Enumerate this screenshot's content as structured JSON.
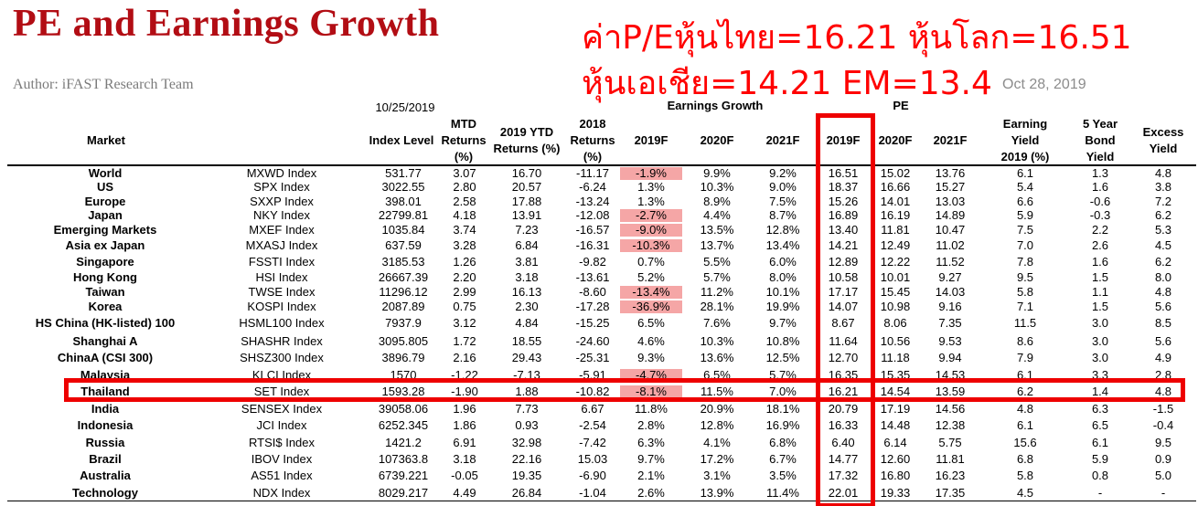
{
  "title": "PE and Earnings Growth",
  "author": "Author: iFAST Research Team",
  "date": "Oct 28, 2019",
  "annotation": {
    "line1": "ค่าP/Eหุ้นไทย=16.21 หุ้นโลก=16.51",
    "line2": "หุ้นเอเชีย=14.21 EM=13.4"
  },
  "header": {
    "as_of": "10/25/2019",
    "earnings_growth": "Earnings Growth",
    "pe": "PE",
    "market": "Market",
    "index_level": "Index Level",
    "mtd": [
      "MTD",
      "Returns",
      "(%)"
    ],
    "ytd": [
      "2019 YTD",
      "Returns (%)"
    ],
    "r2018": [
      "2018",
      "Returns",
      "(%)"
    ],
    "eg_2019f": "2019F",
    "eg_2020f": "2020F",
    "eg_2021f": "2021F",
    "pe_2019f": "2019F",
    "pe_2020f": "2020F",
    "pe_2021f": "2021F",
    "earning_yield": [
      "Earning",
      "Yield",
      "2019 (%)"
    ],
    "bond_yield": [
      "5 Year",
      "Bond",
      "Yield"
    ],
    "excess_yield": [
      "Excess",
      "Yield"
    ]
  },
  "highlight_color": "#f5a6a6",
  "annotation_color": "#ff0000",
  "rows": [
    {
      "market": "World",
      "index": "MXWD Index",
      "level": "531.77",
      "mtd": "3.07",
      "ytd": "16.70",
      "r2018": "-11.17",
      "eg19": "-1.9%",
      "eg20": "9.9%",
      "eg21": "9.2%",
      "pe19": "16.51",
      "pe20": "15.02",
      "pe21": "13.76",
      "ey": "6.1",
      "bond": "1.3",
      "excess": "4.8",
      "neg": true
    },
    {
      "market": "US",
      "index": "SPX Index",
      "level": "3022.55",
      "mtd": "2.80",
      "ytd": "20.57",
      "r2018": "-6.24",
      "eg19": "1.3%",
      "eg20": "10.3%",
      "eg21": "9.0%",
      "pe19": "18.37",
      "pe20": "16.66",
      "pe21": "15.27",
      "ey": "5.4",
      "bond": "1.6",
      "excess": "3.8",
      "neg": false
    },
    {
      "market": "Europe",
      "index": "SXXP Index",
      "level": "398.01",
      "mtd": "2.58",
      "ytd": "17.88",
      "r2018": "-13.24",
      "eg19": "1.3%",
      "eg20": "8.9%",
      "eg21": "7.5%",
      "pe19": "15.26",
      "pe20": "14.01",
      "pe21": "13.03",
      "ey": "6.6",
      "bond": "-0.6",
      "excess": "7.2",
      "neg": false
    },
    {
      "market": "Japan",
      "index": "NKY Index",
      "level": "22799.81",
      "mtd": "4.18",
      "ytd": "13.91",
      "r2018": "-12.08",
      "eg19": "-2.7%",
      "eg20": "4.4%",
      "eg21": "8.7%",
      "pe19": "16.89",
      "pe20": "16.19",
      "pe21": "14.89",
      "ey": "5.9",
      "bond": "-0.3",
      "excess": "6.2",
      "neg": true
    },
    {
      "market": "Emerging Markets",
      "index": "MXEF Index",
      "level": "1035.84",
      "mtd": "3.74",
      "ytd": "7.23",
      "r2018": "-16.57",
      "eg19": "-9.0%",
      "eg20": "13.5%",
      "eg21": "12.8%",
      "pe19": "13.40",
      "pe20": "11.81",
      "pe21": "10.47",
      "ey": "7.5",
      "bond": "2.2",
      "excess": "5.3",
      "neg": true
    },
    {
      "market": "Asia ex Japan",
      "index": "MXASJ Index",
      "level": "637.59",
      "mtd": "3.28",
      "ytd": "6.84",
      "r2018": "-16.31",
      "eg19": "-10.3%",
      "eg20": "13.7%",
      "eg21": "13.4%",
      "pe19": "14.21",
      "pe20": "12.49",
      "pe21": "11.02",
      "ey": "7.0",
      "bond": "2.6",
      "excess": "4.5",
      "neg": true
    },
    {
      "market": "Singapore",
      "index": "FSSTI Index",
      "level": "3185.53",
      "mtd": "1.26",
      "ytd": "3.81",
      "r2018": "-9.82",
      "eg19": "0.7%",
      "eg20": "5.5%",
      "eg21": "6.0%",
      "pe19": "12.89",
      "pe20": "12.22",
      "pe21": "11.52",
      "ey": "7.8",
      "bond": "1.6",
      "excess": "6.2",
      "neg": false
    },
    {
      "market": "Hong Kong",
      "index": "HSI Index",
      "level": "26667.39",
      "mtd": "2.20",
      "ytd": "3.18",
      "r2018": "-13.61",
      "eg19": "5.2%",
      "eg20": "5.7%",
      "eg21": "8.0%",
      "pe19": "10.58",
      "pe20": "10.01",
      "pe21": "9.27",
      "ey": "9.5",
      "bond": "1.5",
      "excess": "8.0",
      "neg": false
    },
    {
      "market": "Taiwan",
      "index": "TWSE Index",
      "level": "11296.12",
      "mtd": "2.99",
      "ytd": "16.13",
      "r2018": "-8.60",
      "eg19": "-13.4%",
      "eg20": "11.2%",
      "eg21": "10.1%",
      "pe19": "17.17",
      "pe20": "15.45",
      "pe21": "14.03",
      "ey": "5.8",
      "bond": "1.1",
      "excess": "4.8",
      "neg": true
    },
    {
      "market": "Korea",
      "index": "KOSPI Index",
      "level": "2087.89",
      "mtd": "0.75",
      "ytd": "2.30",
      "r2018": "-17.28",
      "eg19": "-36.9%",
      "eg20": "28.1%",
      "eg21": "19.9%",
      "pe19": "14.07",
      "pe20": "10.98",
      "pe21": "9.16",
      "ey": "7.1",
      "bond": "1.5",
      "excess": "5.6",
      "neg": true
    },
    {
      "market": "HS China (HK-listed) 100",
      "index": "HSML100 Index",
      "level": "7937.9",
      "mtd": "3.12",
      "ytd": "4.84",
      "r2018": "-15.25",
      "eg19": "6.5%",
      "eg20": "7.6%",
      "eg21": "9.7%",
      "pe19": "8.67",
      "pe20": "8.06",
      "pe21": "7.35",
      "ey": "11.5",
      "bond": "3.0",
      "excess": "8.5",
      "neg": false
    },
    {
      "market": "Shanghai A",
      "index": "SHASHR Index",
      "level": "3095.805",
      "mtd": "1.72",
      "ytd": "18.55",
      "r2018": "-24.60",
      "eg19": "4.6%",
      "eg20": "10.3%",
      "eg21": "10.8%",
      "pe19": "11.64",
      "pe20": "10.56",
      "pe21": "9.53",
      "ey": "8.6",
      "bond": "3.0",
      "excess": "5.6",
      "neg": false
    },
    {
      "market": "ChinaA (CSI 300)",
      "index": "SHSZ300 Index",
      "level": "3896.79",
      "mtd": "2.16",
      "ytd": "29.43",
      "r2018": "-25.31",
      "eg19": "9.3%",
      "eg20": "13.6%",
      "eg21": "12.5%",
      "pe19": "12.70",
      "pe20": "11.18",
      "pe21": "9.94",
      "ey": "7.9",
      "bond": "3.0",
      "excess": "4.9",
      "neg": false
    },
    {
      "market": "Malaysia",
      "index": "KLCI Index",
      "level": "1570",
      "mtd": "-1.22",
      "ytd": "-7.13",
      "r2018": "-5.91",
      "eg19": "-4.7%",
      "eg20": "6.5%",
      "eg21": "5.7%",
      "pe19": "16.35",
      "pe20": "15.35",
      "pe21": "14.53",
      "ey": "6.1",
      "bond": "3.3",
      "excess": "2.8",
      "neg": true
    },
    {
      "market": "Thailand",
      "index": "SET Index",
      "level": "1593.28",
      "mtd": "-1.90",
      "ytd": "1.88",
      "r2018": "-10.82",
      "eg19": "-8.1%",
      "eg20": "11.5%",
      "eg21": "7.0%",
      "pe19": "16.21",
      "pe20": "14.54",
      "pe21": "13.59",
      "ey": "6.2",
      "bond": "1.4",
      "excess": "4.8",
      "neg": true
    },
    {
      "market": "India",
      "index": "SENSEX Index",
      "level": "39058.06",
      "mtd": "1.96",
      "ytd": "7.73",
      "r2018": "6.67",
      "eg19": "11.8%",
      "eg20": "20.9%",
      "eg21": "18.1%",
      "pe19": "20.79",
      "pe20": "17.19",
      "pe21": "14.56",
      "ey": "4.8",
      "bond": "6.3",
      "excess": "-1.5",
      "neg": false
    },
    {
      "market": "Indonesia",
      "index": "JCI Index",
      "level": "6252.345",
      "mtd": "1.86",
      "ytd": "0.93",
      "r2018": "-2.54",
      "eg19": "2.8%",
      "eg20": "12.8%",
      "eg21": "16.9%",
      "pe19": "16.33",
      "pe20": "14.48",
      "pe21": "12.38",
      "ey": "6.1",
      "bond": "6.5",
      "excess": "-0.4",
      "neg": false
    },
    {
      "market": "Russia",
      "index": "RTSI$ Index",
      "level": "1421.2",
      "mtd": "6.91",
      "ytd": "32.98",
      "r2018": "-7.42",
      "eg19": "6.3%",
      "eg20": "4.1%",
      "eg21": "6.8%",
      "pe19": "6.40",
      "pe20": "6.14",
      "pe21": "5.75",
      "ey": "15.6",
      "bond": "6.1",
      "excess": "9.5",
      "neg": false
    },
    {
      "market": "Brazil",
      "index": "IBOV Index",
      "level": "107363.8",
      "mtd": "3.18",
      "ytd": "22.16",
      "r2018": "15.03",
      "eg19": "9.7%",
      "eg20": "17.2%",
      "eg21": "6.7%",
      "pe19": "14.77",
      "pe20": "12.60",
      "pe21": "11.81",
      "ey": "6.8",
      "bond": "5.9",
      "excess": "0.9",
      "neg": false
    },
    {
      "market": "Australia",
      "index": "AS51 Index",
      "level": "6739.221",
      "mtd": "-0.05",
      "ytd": "19.35",
      "r2018": "-6.90",
      "eg19": "2.1%",
      "eg20": "3.1%",
      "eg21": "3.5%",
      "pe19": "17.32",
      "pe20": "16.80",
      "pe21": "16.23",
      "ey": "5.8",
      "bond": "0.8",
      "excess": "5.0",
      "neg": false
    },
    {
      "market": "Technology",
      "index": "NDX Index",
      "level": "8029.217",
      "mtd": "4.49",
      "ytd": "26.84",
      "r2018": "-1.04",
      "eg19": "2.6%",
      "eg20": "13.9%",
      "eg21": "11.4%",
      "pe19": "22.01",
      "pe20": "19.33",
      "pe21": "17.35",
      "ey": "4.5",
      "bond": "-",
      "excess": "-",
      "neg": false
    }
  ]
}
